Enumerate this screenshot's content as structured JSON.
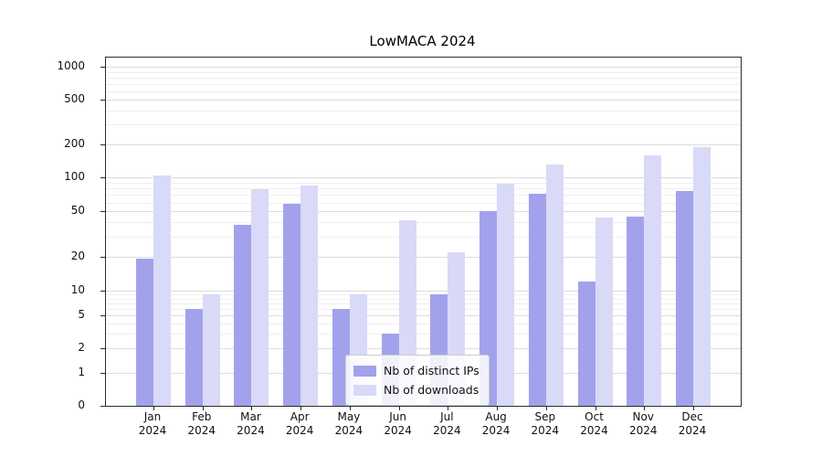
{
  "chart_data": {
    "type": "bar",
    "title": "LowMACA 2024",
    "year": "2024",
    "categories": [
      "Jan",
      "Feb",
      "Mar",
      "Apr",
      "May",
      "Jun",
      "Jul",
      "Aug",
      "Sep",
      "Oct",
      "Nov",
      "Dec"
    ],
    "series": [
      {
        "name": "Nb of distinct IPs",
        "color": "#a2a2ec",
        "values": [
          19,
          6,
          38,
          58,
          6,
          3,
          9,
          50,
          72,
          12,
          45,
          75
        ]
      },
      {
        "name": "Nb of downloads",
        "color": "#d9d9f8",
        "values": [
          103,
          9,
          78,
          85,
          9,
          42,
          22,
          88,
          130,
          44,
          158,
          188
        ]
      }
    ],
    "yscale": "symlog",
    "yticks": [
      0,
      1,
      2,
      5,
      10,
      20,
      50,
      100,
      200,
      500,
      1000
    ],
    "ylim": [
      0,
      1100
    ],
    "xlabel": "",
    "ylabel": "",
    "grid": true,
    "legend_position": "lower center"
  }
}
